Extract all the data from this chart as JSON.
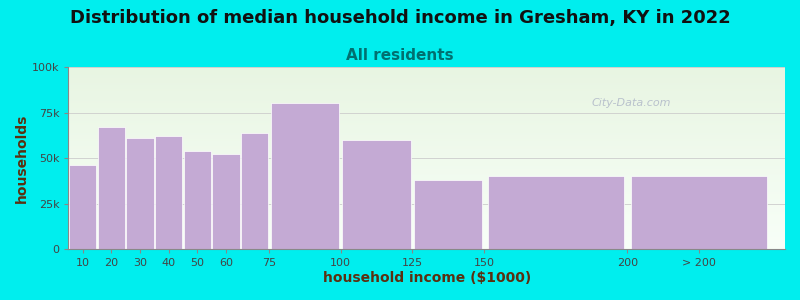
{
  "title": "Distribution of median household income in Gresham, KY in 2022",
  "subtitle": "All residents",
  "xlabel": "household income ($1000)",
  "ylabel": "households",
  "bar_color": "#c4aad4",
  "bar_edgecolor": "#ffffff",
  "background_color": "#00eeee",
  "plot_bg_top": "#e8f5e2",
  "plot_bg_bottom": "#f8fff8",
  "watermark": "City-Data.com",
  "lefts": [
    5,
    15,
    25,
    35,
    45,
    55,
    65,
    75,
    100,
    125,
    150,
    200
  ],
  "widths": [
    10,
    10,
    10,
    10,
    10,
    10,
    10,
    25,
    25,
    25,
    50,
    50
  ],
  "values": [
    46000,
    67000,
    61000,
    62000,
    54000,
    52000,
    64000,
    80000,
    60000,
    38000,
    40000,
    40000
  ],
  "ylim": [
    0,
    100000
  ],
  "yticks": [
    0,
    25000,
    50000,
    75000,
    100000
  ],
  "ytick_labels": [
    "0",
    "25k",
    "50k",
    "75k",
    "100k"
  ],
  "xtick_positions": [
    10,
    20,
    30,
    40,
    50,
    60,
    75,
    100,
    125,
    150,
    200,
    225
  ],
  "xtick_labels": [
    "10",
    "20",
    "30",
    "40",
    "50",
    "60",
    "75",
    "100",
    "125",
    "150",
    "200",
    "> 200"
  ],
  "title_fontsize": 13,
  "subtitle_fontsize": 11,
  "axis_label_fontsize": 10,
  "tick_fontsize": 8
}
